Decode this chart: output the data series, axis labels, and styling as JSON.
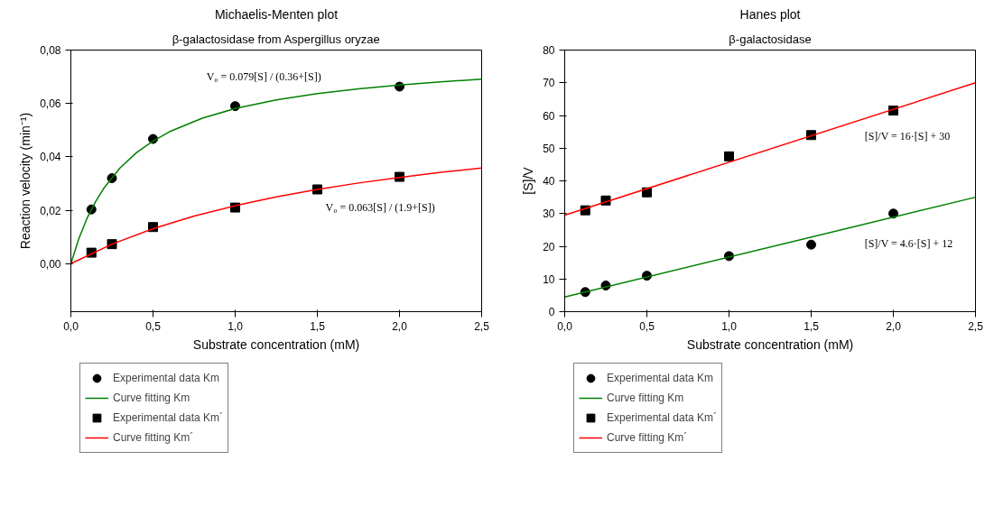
{
  "chart_data": [
    {
      "type": "scatter",
      "title": "Michaelis-Menten plot",
      "subtitle": "β-galactosidase from Aspergillus oryzae",
      "xlabel": "Substrate concentration (mM)",
      "ylabel": "Reaction velocity (min⁻¹)",
      "xlim": [
        0,
        2.5
      ],
      "ylim": [
        -0.018,
        0.08
      ],
      "xticks": [
        {
          "value": 0,
          "label": "0,0"
        },
        {
          "value": 0.5,
          "label": "0,5"
        },
        {
          "value": 1,
          "label": "1,0"
        },
        {
          "value": 1.5,
          "label": "1,5"
        },
        {
          "value": 2,
          "label": "2,0"
        },
        {
          "value": 2.5,
          "label": "2,5"
        }
      ],
      "yticks": [
        {
          "value": 0,
          "label": "0,00"
        },
        {
          "value": 0.02,
          "label": "0,02"
        },
        {
          "value": 0.04,
          "label": "0,04"
        },
        {
          "value": 0.06,
          "label": "0,06"
        },
        {
          "value": 0.08,
          "label": "0,08"
        }
      ],
      "grid": false,
      "legend": "bottom left",
      "series": [
        {
          "name": "Experimental data Km",
          "marker": "circle",
          "color": "#000000",
          "x": [
            0.125,
            0.25,
            0.5,
            1.0,
            2.0
          ],
          "values": [
            0.0203,
            0.032,
            0.0467,
            0.059,
            0.0663
          ]
        },
        {
          "name": "Curve fitting Km",
          "type": "line",
          "color": "#008000",
          "x": [
            0,
            0.05,
            0.1,
            0.15,
            0.2,
            0.3,
            0.4,
            0.5,
            0.6,
            0.8,
            1.0,
            1.25,
            1.5,
            1.75,
            2.0,
            2.25,
            2.5
          ],
          "values": [
            0,
            0.0096,
            0.0172,
            0.0232,
            0.0282,
            0.0359,
            0.0416,
            0.0459,
            0.0494,
            0.0545,
            0.0581,
            0.0613,
            0.0637,
            0.0655,
            0.0669,
            0.0681,
            0.0691
          ]
        },
        {
          "name": "Experimental data Km´",
          "marker": "square",
          "color": "#000000",
          "x": [
            0.125,
            0.25,
            0.5,
            1.0,
            1.5,
            2.0
          ],
          "values": [
            0.0041,
            0.0073,
            0.0137,
            0.021,
            0.0278,
            0.0325
          ]
        },
        {
          "name": "Curve fitting Km´",
          "type": "line",
          "color": "#ff0000",
          "x": [
            0,
            0.25,
            0.5,
            0.75,
            1.0,
            1.25,
            1.5,
            1.75,
            2.0,
            2.25,
            2.5
          ],
          "values": [
            0,
            0.0073,
            0.0131,
            0.0178,
            0.0217,
            0.025,
            0.0278,
            0.0302,
            0.0323,
            0.0342,
            0.0358
          ]
        }
      ],
      "annotations": [
        "V₀ = 0.079[S] / (0.36+[S])",
        "V₀ = 0.063[S] / (1.9+[S])"
      ]
    },
    {
      "type": "scatter",
      "title": "Hanes plot",
      "subtitle": "β-galactosidase",
      "xlabel": "Substrate concentration (mM)",
      "ylabel": "[S]/V",
      "xlim": [
        0,
        2.5
      ],
      "ylim": [
        0,
        80
      ],
      "xticks": [
        {
          "value": 0,
          "label": "0,0"
        },
        {
          "value": 0.5,
          "label": "0,5"
        },
        {
          "value": 1,
          "label": "1,0"
        },
        {
          "value": 1.5,
          "label": "1,5"
        },
        {
          "value": 2,
          "label": "2,0"
        },
        {
          "value": 2.5,
          "label": "2,5"
        }
      ],
      "yticks": [
        0,
        10,
        20,
        30,
        40,
        50,
        60,
        70,
        80
      ],
      "grid": false,
      "legend": "bottom left",
      "series": [
        {
          "name": "Experimental data Km",
          "marker": "circle",
          "color": "#000000",
          "x": [
            0.125,
            0.25,
            0.5,
            1.0,
            1.5,
            2.0
          ],
          "values": [
            6,
            8,
            11,
            17,
            20.5,
            30
          ]
        },
        {
          "name": "Curve fitting Km",
          "type": "line",
          "color": "#008000",
          "x": [
            0,
            2.5
          ],
          "values": [
            4.5,
            35
          ]
        },
        {
          "name": "Experimental data Km´",
          "marker": "square",
          "color": "#000000",
          "x": [
            0.125,
            0.25,
            0.5,
            1.0,
            1.5,
            2.0
          ],
          "values": [
            31,
            34,
            36.5,
            47.5,
            54,
            61.5
          ]
        },
        {
          "name": "Curve fitting Km´",
          "type": "line",
          "color": "#ff0000",
          "x": [
            0,
            2.5
          ],
          "values": [
            29.5,
            70
          ]
        }
      ],
      "annotations": [
        "[S]/V = 16·[S] + 30",
        "[S]/V = 4.6·[S] + 12"
      ]
    }
  ]
}
